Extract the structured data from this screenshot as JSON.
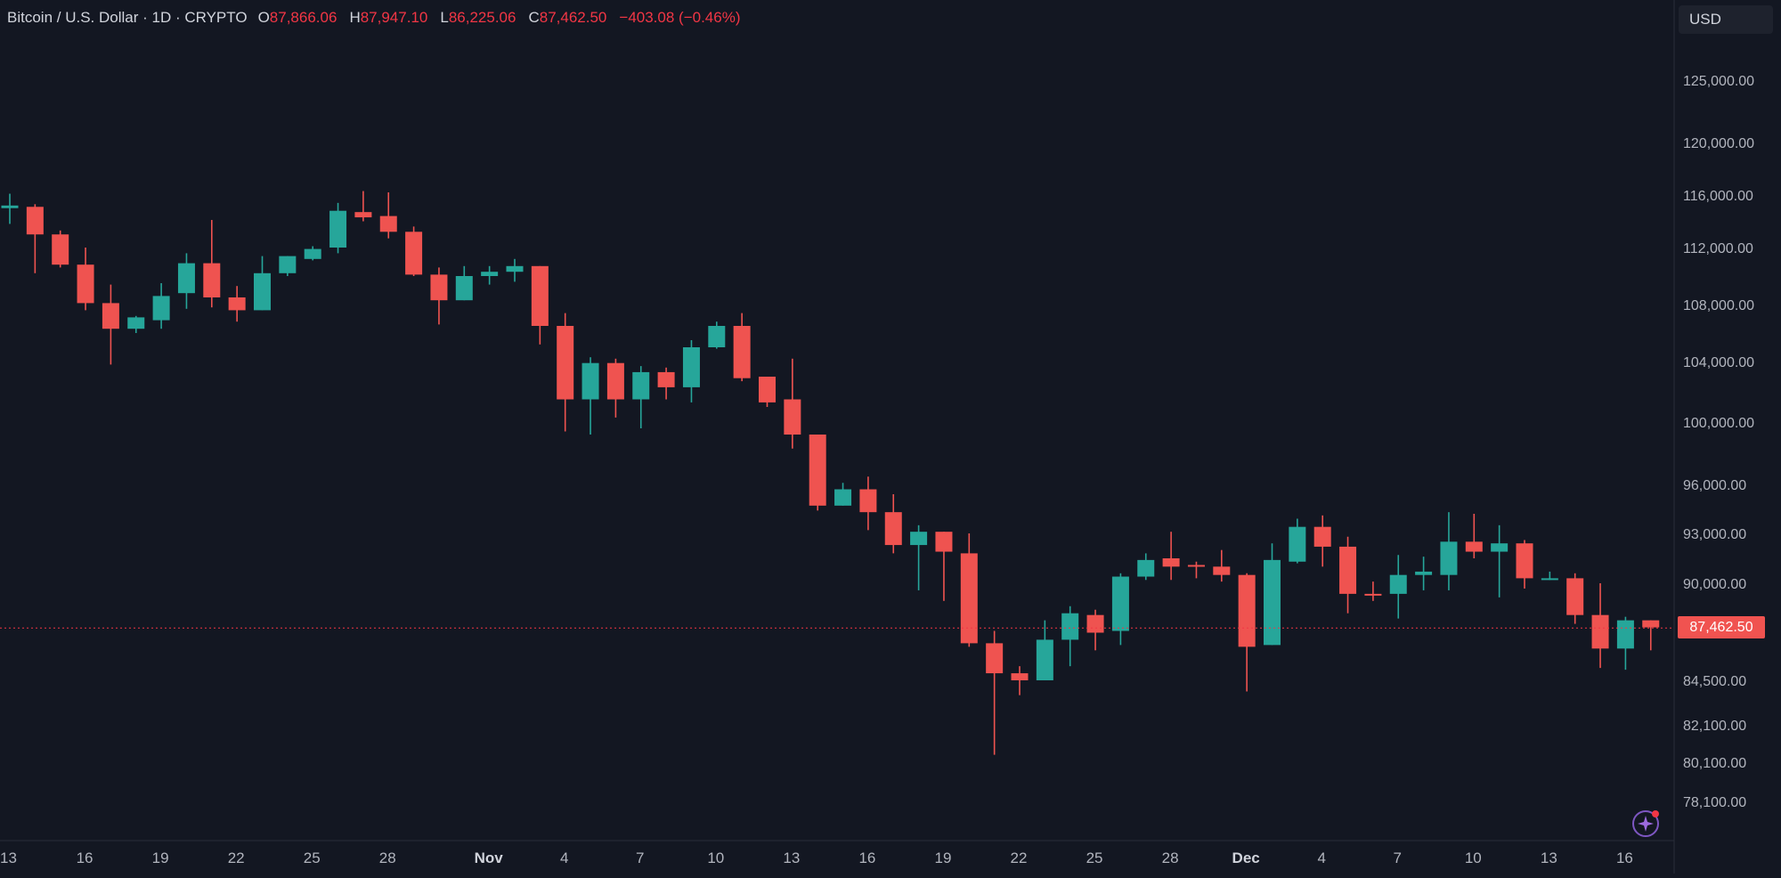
{
  "legend": {
    "symbol": "Bitcoin / U.S. Dollar · 1D · CRYPTO",
    "o_label": "O",
    "o_value": "87,866.06",
    "h_label": "H",
    "h_value": "87,947.10",
    "l_label": "L",
    "l_value": "86,225.06",
    "c_label": "C",
    "c_value": "87,462.50",
    "change": "−403.08 (−0.46%)"
  },
  "price_scale": {
    "currency": "USD",
    "current_price_label": "87,462.50"
  },
  "colors": {
    "background": "#131722",
    "up": "#26a69a",
    "down": "#ef5350",
    "axis_text": "#b2b5be",
    "price_line": "#f23645"
  },
  "icons": {
    "logo": "spark-logo-icon"
  },
  "chart_data": {
    "type": "candlestick",
    "ylim": [
      76500,
      129000
    ],
    "y_ticks": [
      125000,
      120000,
      116000,
      112000,
      108000,
      104000,
      100000,
      96000,
      93000,
      90000,
      84500,
      82100,
      80100,
      78100
    ],
    "y_tick_labels": [
      "125,000.00",
      "120,000.00",
      "116,000.00",
      "112,000.00",
      "108,000.00",
      "104,000.00",
      "100,000.00",
      "96,000.00",
      "93,000.00",
      "90,000.00",
      "84,500.00",
      "82,100.00",
      "80,100.00",
      "78,100.00"
    ],
    "x_ticks": [
      {
        "index": 0,
        "label": "13"
      },
      {
        "index": 3,
        "label": "16"
      },
      {
        "index": 6,
        "label": "19"
      },
      {
        "index": 9,
        "label": "22"
      },
      {
        "index": 12,
        "label": "25"
      },
      {
        "index": 15,
        "label": "28"
      },
      {
        "index": 19,
        "label": "Nov",
        "bold": true
      },
      {
        "index": 22,
        "label": "4"
      },
      {
        "index": 25,
        "label": "7"
      },
      {
        "index": 28,
        "label": "10"
      },
      {
        "index": 31,
        "label": "13"
      },
      {
        "index": 34,
        "label": "16"
      },
      {
        "index": 37,
        "label": "19"
      },
      {
        "index": 40,
        "label": "22"
      },
      {
        "index": 43,
        "label": "25"
      },
      {
        "index": 46,
        "label": "28"
      },
      {
        "index": 49,
        "label": "Dec",
        "bold": true
      },
      {
        "index": 52,
        "label": "4"
      },
      {
        "index": 55,
        "label": "7"
      },
      {
        "index": 58,
        "label": "10"
      },
      {
        "index": 61,
        "label": "13"
      },
      {
        "index": 64,
        "label": "16"
      }
    ],
    "current_price": 87462.5,
    "candles": [
      {
        "o": 115000,
        "h": 116100,
        "l": 113800,
        "c": 115200
      },
      {
        "o": 115100,
        "h": 115300,
        "l": 110200,
        "c": 113000
      },
      {
        "o": 113000,
        "h": 113300,
        "l": 110600,
        "c": 110800
      },
      {
        "o": 110800,
        "h": 112000,
        "l": 107600,
        "c": 108100
      },
      {
        "o": 108100,
        "h": 109400,
        "l": 103800,
        "c": 106300
      },
      {
        "o": 106300,
        "h": 107200,
        "l": 106000,
        "c": 107100
      },
      {
        "o": 106900,
        "h": 109500,
        "l": 106300,
        "c": 108600
      },
      {
        "o": 108800,
        "h": 111600,
        "l": 107700,
        "c": 110900
      },
      {
        "o": 110900,
        "h": 114100,
        "l": 107800,
        "c": 108500
      },
      {
        "o": 108500,
        "h": 109300,
        "l": 106800,
        "c": 107600
      },
      {
        "o": 107600,
        "h": 111400,
        "l": 107600,
        "c": 110200
      },
      {
        "o": 110200,
        "h": 111400,
        "l": 110000,
        "c": 111400
      },
      {
        "o": 111200,
        "h": 112100,
        "l": 111100,
        "c": 111900
      },
      {
        "o": 112000,
        "h": 115400,
        "l": 111600,
        "c": 114800
      },
      {
        "o": 114700,
        "h": 116300,
        "l": 114000,
        "c": 114300
      },
      {
        "o": 114400,
        "h": 116200,
        "l": 112700,
        "c": 113200
      },
      {
        "o": 113200,
        "h": 113600,
        "l": 110000,
        "c": 110100
      },
      {
        "o": 110100,
        "h": 110600,
        "l": 106600,
        "c": 108300
      },
      {
        "o": 108300,
        "h": 110700,
        "l": 108300,
        "c": 110000
      },
      {
        "o": 110000,
        "h": 110700,
        "l": 109400,
        "c": 110300
      },
      {
        "o": 110300,
        "h": 111200,
        "l": 109600,
        "c": 110700
      },
      {
        "o": 110700,
        "h": 110700,
        "l": 105200,
        "c": 106500
      },
      {
        "o": 106500,
        "h": 107400,
        "l": 99400,
        "c": 101500
      },
      {
        "o": 101500,
        "h": 104300,
        "l": 99200,
        "c": 103900
      },
      {
        "o": 103900,
        "h": 104200,
        "l": 100300,
        "c": 101500
      },
      {
        "o": 101500,
        "h": 103700,
        "l": 99600,
        "c": 103300
      },
      {
        "o": 103300,
        "h": 103600,
        "l": 101500,
        "c": 102300
      },
      {
        "o": 102300,
        "h": 105500,
        "l": 101300,
        "c": 105000
      },
      {
        "o": 105000,
        "h": 106800,
        "l": 104900,
        "c": 106500
      },
      {
        "o": 106500,
        "h": 107400,
        "l": 102700,
        "c": 102900
      },
      {
        "o": 103000,
        "h": 103000,
        "l": 101000,
        "c": 101300
      },
      {
        "o": 101500,
        "h": 104200,
        "l": 98300,
        "c": 99200
      },
      {
        "o": 99200,
        "h": 99200,
        "l": 94400,
        "c": 94700
      },
      {
        "o": 94700,
        "h": 96100,
        "l": 94700,
        "c": 95700
      },
      {
        "o": 95700,
        "h": 96500,
        "l": 93200,
        "c": 94300
      },
      {
        "o": 94300,
        "h": 95400,
        "l": 91800,
        "c": 92300
      },
      {
        "o": 92300,
        "h": 93500,
        "l": 89600,
        "c": 93100
      },
      {
        "o": 93100,
        "h": 93100,
        "l": 89000,
        "c": 91900
      },
      {
        "o": 91800,
        "h": 93000,
        "l": 86400,
        "c": 86600
      },
      {
        "o": 86600,
        "h": 87300,
        "l": 80500,
        "c": 84900
      },
      {
        "o": 84900,
        "h": 85300,
        "l": 83700,
        "c": 84500
      },
      {
        "o": 84500,
        "h": 87900,
        "l": 84500,
        "c": 86800
      },
      {
        "o": 86800,
        "h": 88700,
        "l": 85300,
        "c": 88300
      },
      {
        "o": 88200,
        "h": 88500,
        "l": 86200,
        "c": 87200
      },
      {
        "o": 87300,
        "h": 90600,
        "l": 86500,
        "c": 90400
      },
      {
        "o": 90400,
        "h": 91800,
        "l": 90200,
        "c": 91400
      },
      {
        "o": 91500,
        "h": 93100,
        "l": 90200,
        "c": 91000
      },
      {
        "o": 91100,
        "h": 91300,
        "l": 90300,
        "c": 91000
      },
      {
        "o": 91000,
        "h": 92000,
        "l": 90100,
        "c": 90500
      },
      {
        "o": 90500,
        "h": 90600,
        "l": 83900,
        "c": 86400
      },
      {
        "o": 86500,
        "h": 92400,
        "l": 86500,
        "c": 91400
      },
      {
        "o": 91300,
        "h": 93900,
        "l": 91200,
        "c": 93400
      },
      {
        "o": 93400,
        "h": 94100,
        "l": 91000,
        "c": 92200
      },
      {
        "o": 92200,
        "h": 92800,
        "l": 88300,
        "c": 89400
      },
      {
        "o": 89400,
        "h": 90100,
        "l": 89000,
        "c": 89300
      },
      {
        "o": 89400,
        "h": 91700,
        "l": 88000,
        "c": 90500
      },
      {
        "o": 90500,
        "h": 91600,
        "l": 89600,
        "c": 90700
      },
      {
        "o": 90500,
        "h": 94300,
        "l": 89600,
        "c": 92500
      },
      {
        "o": 92500,
        "h": 94200,
        "l": 91500,
        "c": 91900
      },
      {
        "o": 91900,
        "h": 93500,
        "l": 89200,
        "c": 92400
      },
      {
        "o": 92400,
        "h": 92600,
        "l": 89700,
        "c": 90300
      },
      {
        "o": 90300,
        "h": 90700,
        "l": 90200,
        "c": 90300
      },
      {
        "o": 90300,
        "h": 90600,
        "l": 87700,
        "c": 88200
      },
      {
        "o": 88200,
        "h": 90000,
        "l": 85200,
        "c": 86300
      },
      {
        "o": 86300,
        "h": 88100,
        "l": 85100,
        "c": 87900
      },
      {
        "o": 87900,
        "h": 87900,
        "l": 86200,
        "c": 87500
      }
    ]
  }
}
